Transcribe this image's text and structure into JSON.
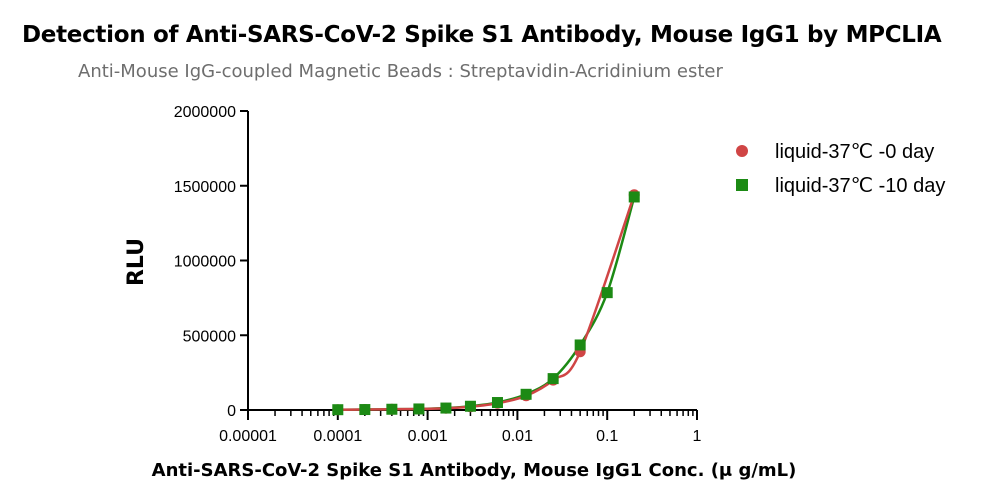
{
  "chart_data": {
    "type": "scatter",
    "title": "Detection of Anti-SARS-CoV-2 Spike S1 Antibody, Mouse IgG1 by MPCLIA",
    "subtitle": "Anti-Mouse IgG-coupled Magnetic Beads : Streptavidin-Acridinium ester",
    "xlabel": "Anti-SARS-CoV-2 Spike S1 Antibody, Mouse IgG1 Conc. (μ g/mL)",
    "ylabel": "RLU",
    "xscale": "log",
    "xlim": [
      1e-05,
      1
    ],
    "ylim": [
      0,
      2000000
    ],
    "xticks": [
      "0.00001",
      "0.0001",
      "0.001",
      "0.01",
      "0.1",
      "1"
    ],
    "yticks": [
      "0",
      "500000",
      "1000000",
      "1500000",
      "2000000"
    ],
    "legend_position": "right",
    "grid": false,
    "series": [
      {
        "name": "liquid-37℃ -0 day",
        "marker": "circle",
        "color": "#d04545",
        "x": [
          0.0001,
          0.0002,
          0.0004,
          0.0008,
          0.0016,
          0.003,
          0.006,
          0.0125,
          0.025,
          0.05,
          0.2
        ],
        "y": [
          2000,
          3000,
          5000,
          7000,
          12000,
          22000,
          45000,
          95000,
          200000,
          390000,
          1440000
        ]
      },
      {
        "name": "liquid-37℃ -10 day",
        "marker": "square",
        "color": "#1c8a14",
        "x": [
          0.0001,
          0.0002,
          0.0004,
          0.0008,
          0.0016,
          0.003,
          0.006,
          0.0125,
          0.025,
          0.05,
          0.1,
          0.2
        ],
        "y": [
          2000,
          3000,
          5000,
          7000,
          13000,
          25000,
          50000,
          105000,
          210000,
          435000,
          785000,
          1425000
        ]
      }
    ]
  }
}
